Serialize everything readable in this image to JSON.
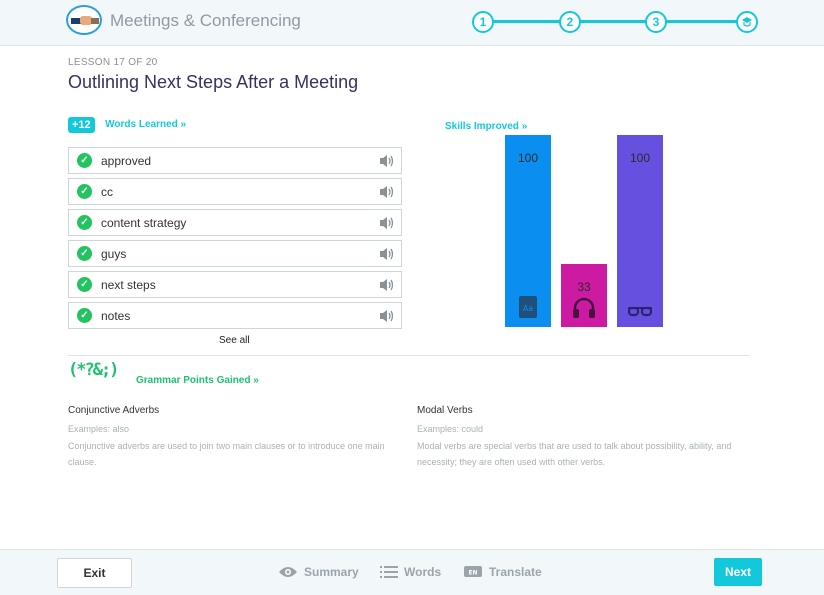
{
  "header": {
    "app_title": "Meetings & Conferencing",
    "steps": [
      "1",
      "2",
      "3"
    ],
    "final_step_icon": "graduation-icon"
  },
  "lesson": {
    "label": "LESSON  17 OF 20",
    "title": "Outlining Next Steps After a Meeting"
  },
  "words": {
    "badge": "+12",
    "link_label": "Words Learned »",
    "items": [
      "approved",
      "cc",
      "content strategy",
      "guys",
      "next steps",
      "notes"
    ],
    "item_icon": "check-icon",
    "audio_icon": "speaker-icon",
    "see_all": "See all"
  },
  "skills": {
    "link_label": "Skills Improved »"
  },
  "chart_data": {
    "type": "bar",
    "categories": [
      "vocabulary",
      "listening",
      "reading"
    ],
    "values": [
      100,
      33,
      100
    ],
    "colors": [
      "#0a8ff0",
      "#cc1aa3",
      "#6650e0"
    ],
    "icons": [
      "dictionary-icon",
      "headphones-icon",
      "glasses-icon"
    ],
    "ylim": [
      0,
      100
    ]
  },
  "grammar": {
    "icon_text": "(*?&;)",
    "link_label": "Grammar Points Gained »",
    "points": [
      {
        "title": "Conjunctive Adverbs",
        "examples": "Examples: also",
        "description": "Conjunctive adverbs are used to join two main clauses or to introduce one main clause."
      },
      {
        "title": "Modal Verbs",
        "examples": "Examples: could",
        "description": "Modal verbs are special verbs that are used to talk about possibility, ability, and necessity; they are often used with other verbs."
      }
    ]
  },
  "footer": {
    "exit": "Exit",
    "summary": "Summary",
    "words": "Words",
    "translate": "Translate",
    "next": "Next"
  },
  "colors": {
    "accent": "#14c8dc",
    "success": "#21c45f",
    "title": "#3a3060"
  }
}
